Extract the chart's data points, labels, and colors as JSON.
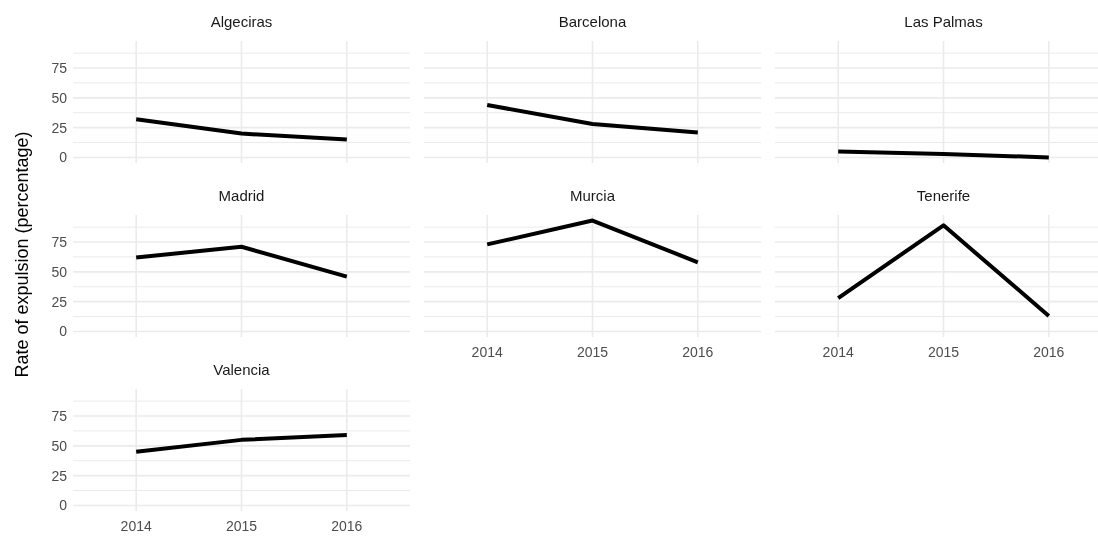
{
  "chart_data": [
    {
      "type": "line",
      "title": "Algeciras",
      "x": [
        2014,
        2015,
        2016
      ],
      "series": [
        {
          "color": "#000000",
          "values": [
            32,
            20,
            15
          ]
        }
      ],
      "xlim": [
        2013.4,
        2016.6
      ],
      "xticks": [
        2014,
        2015,
        2016
      ],
      "ylim": [
        -4.65,
        97.65
      ],
      "yticks": [
        0,
        {
          "value": 12.5,
          "label": null
        },
        25,
        {
          "value": 37.5,
          "label": null
        },
        50,
        {
          "value": 62.5,
          "label": null
        },
        75,
        {
          "value": 87.5,
          "label": null
        }
      ],
      "grid": true,
      "tick_labels": "y"
    },
    {
      "type": "line",
      "title": "Barcelona",
      "x": [
        2014,
        2015,
        2016
      ],
      "series": [
        {
          "color": "#000000",
          "values": [
            44,
            28,
            21
          ]
        }
      ],
      "xlim": [
        2013.4,
        2016.6
      ],
      "xticks": [
        2014,
        2015,
        2016
      ],
      "ylim": [
        -4.65,
        97.65
      ],
      "yticks": [
        0,
        {
          "value": 12.5,
          "label": null
        },
        25,
        {
          "value": 37.5,
          "label": null
        },
        50,
        {
          "value": 62.5,
          "label": null
        },
        75,
        {
          "value": 87.5,
          "label": null
        }
      ],
      "grid": true,
      "tick_labels": false
    },
    {
      "type": "line",
      "title": "Las Palmas",
      "x": [
        2014,
        2015,
        2016
      ],
      "series": [
        {
          "color": "#000000",
          "values": [
            5,
            3,
            0
          ]
        }
      ],
      "xlim": [
        2013.4,
        2016.6
      ],
      "xticks": [
        2014,
        2015,
        2016
      ],
      "ylim": [
        -4.65,
        97.65
      ],
      "yticks": [
        0,
        {
          "value": 12.5,
          "label": null
        },
        25,
        {
          "value": 37.5,
          "label": null
        },
        50,
        {
          "value": 62.5,
          "label": null
        },
        75,
        {
          "value": 87.5,
          "label": null
        }
      ],
      "grid": true,
      "tick_labels": false
    },
    {
      "type": "line",
      "title": "Madrid",
      "ylabel": "Rate of expulsion (percentage)",
      "x": [
        2014,
        2015,
        2016
      ],
      "series": [
        {
          "color": "#000000",
          "values": [
            62,
            71,
            46
          ]
        }
      ],
      "xlim": [
        2013.4,
        2016.6
      ],
      "xticks": [
        2014,
        2015,
        2016
      ],
      "ylim": [
        -4.65,
        97.65
      ],
      "yticks": [
        0,
        {
          "value": 12.5,
          "label": null
        },
        25,
        {
          "value": 37.5,
          "label": null
        },
        50,
        {
          "value": 62.5,
          "label": null
        },
        75,
        {
          "value": 87.5,
          "label": null
        }
      ],
      "grid": true,
      "tick_labels": "y"
    },
    {
      "type": "line",
      "title": "Murcia",
      "x": [
        2014,
        2015,
        2016
      ],
      "series": [
        {
          "color": "#000000",
          "values": [
            73,
            93,
            58
          ]
        }
      ],
      "xlim": [
        2013.4,
        2016.6
      ],
      "xticks": [
        2014,
        2015,
        2016
      ],
      "ylim": [
        -4.65,
        97.65
      ],
      "yticks": [
        0,
        {
          "value": 12.5,
          "label": null
        },
        25,
        {
          "value": 37.5,
          "label": null
        },
        50,
        {
          "value": 62.5,
          "label": null
        },
        75,
        {
          "value": 87.5,
          "label": null
        }
      ],
      "grid": true,
      "tick_labels": "x"
    },
    {
      "type": "line",
      "title": "Tenerife",
      "x": [
        2014,
        2015,
        2016
      ],
      "series": [
        {
          "color": "#000000",
          "values": [
            28,
            89,
            13
          ]
        }
      ],
      "xlim": [
        2013.4,
        2016.6
      ],
      "xticks": [
        2014,
        2015,
        2016
      ],
      "ylim": [
        -4.65,
        97.65
      ],
      "yticks": [
        0,
        {
          "value": 12.5,
          "label": null
        },
        25,
        {
          "value": 37.5,
          "label": null
        },
        50,
        {
          "value": 62.5,
          "label": null
        },
        75,
        {
          "value": 87.5,
          "label": null
        }
      ],
      "grid": true,
      "tick_labels": "x"
    },
    {
      "type": "line",
      "title": "Valencia",
      "x": [
        2014,
        2015,
        2016
      ],
      "series": [
        {
          "color": "#000000",
          "values": [
            45,
            55,
            59
          ]
        }
      ],
      "xlim": [
        2013.4,
        2016.6
      ],
      "xticks": [
        2014,
        2015,
        2016
      ],
      "ylim": [
        -4.65,
        97.65
      ],
      "yticks": [
        0,
        {
          "value": 12.5,
          "label": null
        },
        25,
        {
          "value": 37.5,
          "label": null
        },
        50,
        {
          "value": 62.5,
          "label": null
        },
        75,
        {
          "value": 87.5,
          "label": null
        }
      ],
      "grid": true
    }
  ]
}
